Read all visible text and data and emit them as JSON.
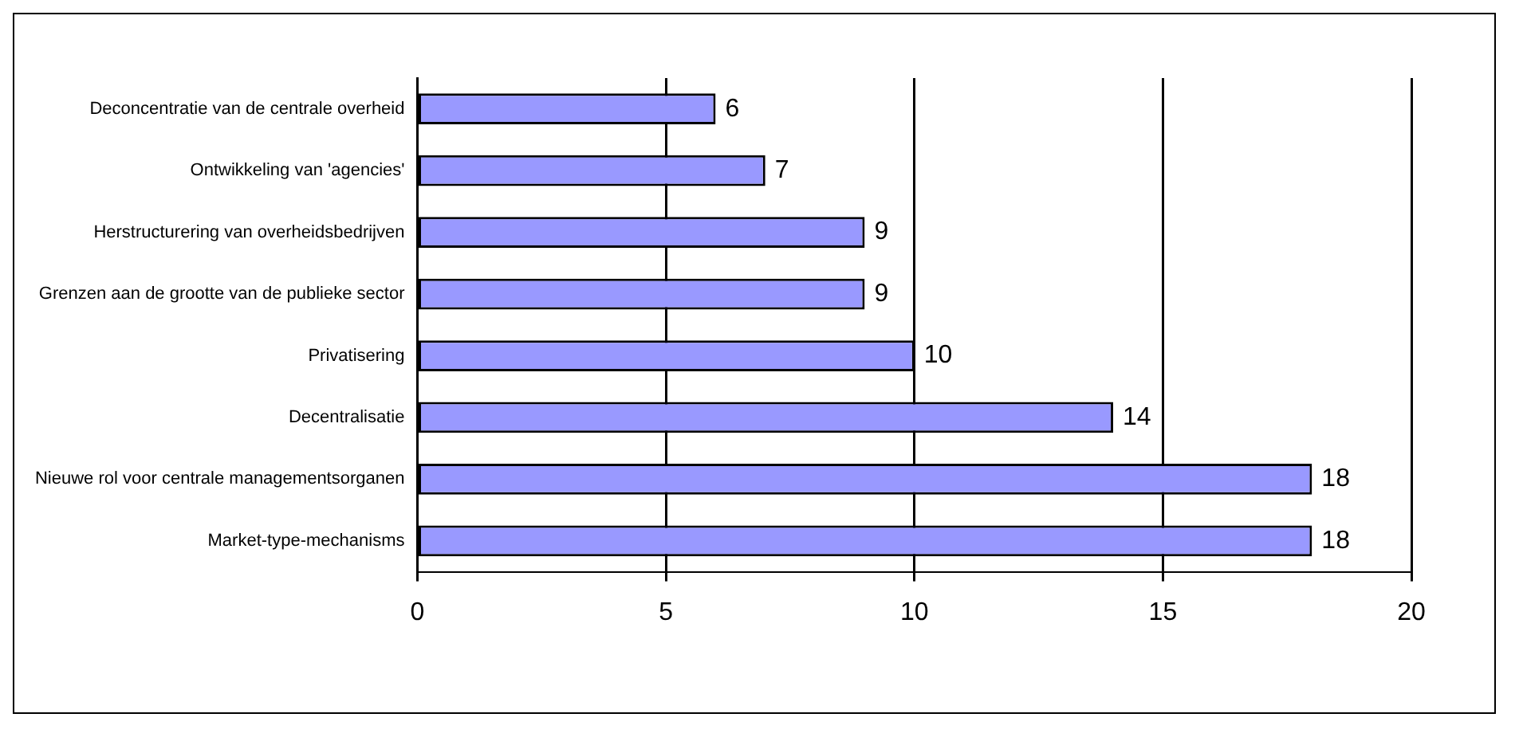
{
  "chart_data": {
    "type": "bar",
    "orientation": "horizontal",
    "categories": [
      "Deconcentratie van de centrale overheid",
      "Ontwikkeling van 'agencies'",
      "Herstructurering van overheidsbedrijven",
      "Grenzen aan de grootte van de publieke sector",
      "Privatisering",
      "Decentralisatie",
      "Nieuwe rol voor centrale managementsorganen",
      "Market-type-mechanisms"
    ],
    "values": [
      6,
      7,
      9,
      9,
      10,
      14,
      18,
      18
    ],
    "color": "#9999ff",
    "xlim": [
      0,
      20
    ],
    "xticks": [
      0,
      5,
      10,
      15,
      20
    ],
    "grid": "x",
    "data_labels": true,
    "legend": false
  }
}
